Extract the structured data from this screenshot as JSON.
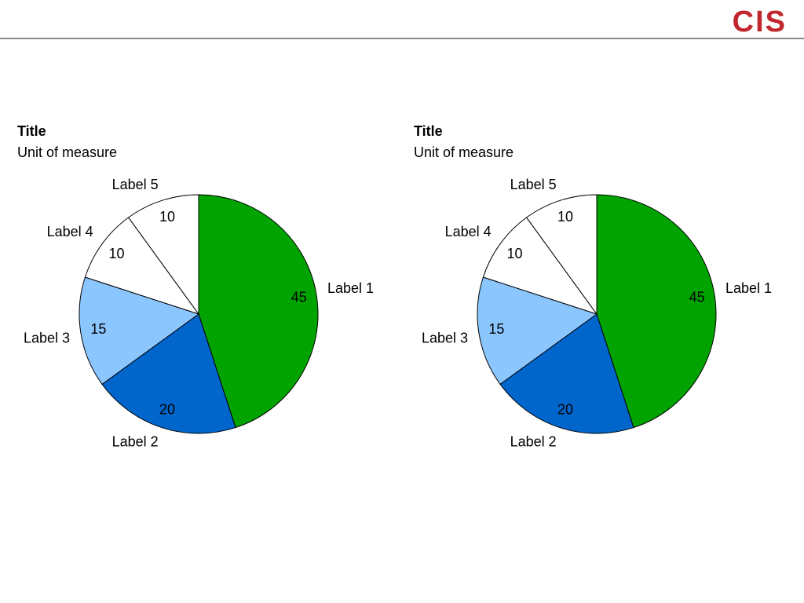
{
  "logo": "CIS",
  "chart_data": [
    {
      "type": "pie",
      "title": "Title",
      "subtitle": "Unit of measure",
      "categories": [
        "Label 1",
        "Label 2",
        "Label 3",
        "Label 4",
        "Label 5"
      ],
      "values": [
        45,
        20,
        15,
        10,
        10
      ],
      "colors": [
        "#00a300",
        "#0066cc",
        "#8cc6ff",
        "#ffffff",
        "#ffffff"
      ]
    },
    {
      "type": "pie",
      "title": "Title",
      "subtitle": "Unit of measure",
      "categories": [
        "Label 1",
        "Label 2",
        "Label 3",
        "Label 4",
        "Label 5"
      ],
      "values": [
        45,
        20,
        15,
        10,
        10
      ],
      "colors": [
        "#00a300",
        "#0066cc",
        "#8cc6ff",
        "#ffffff",
        "#ffffff"
      ]
    }
  ]
}
